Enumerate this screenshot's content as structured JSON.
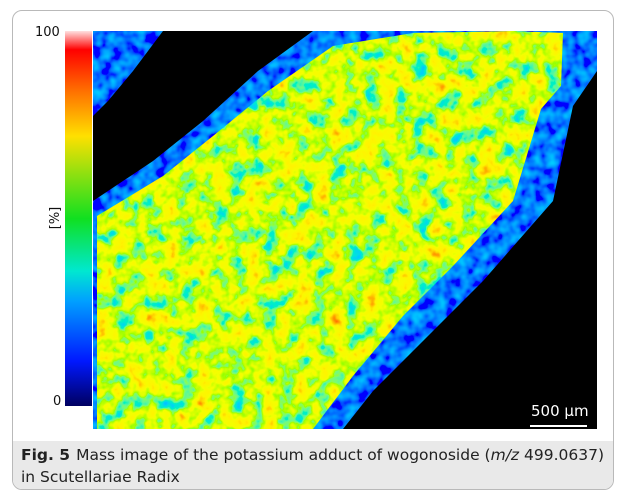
{
  "figure": {
    "colorbar": {
      "max_label": "100",
      "unit_label": "[%]",
      "min_label": "0"
    },
    "scale_bar": "500 µm",
    "caption": {
      "label": "Fig. 5",
      "text_before": "Mass image of the potassium adduct of wogonoside (",
      "italic": "m/z",
      "text_after": " 499.0637) in Scutellariae Radix"
    }
  }
}
